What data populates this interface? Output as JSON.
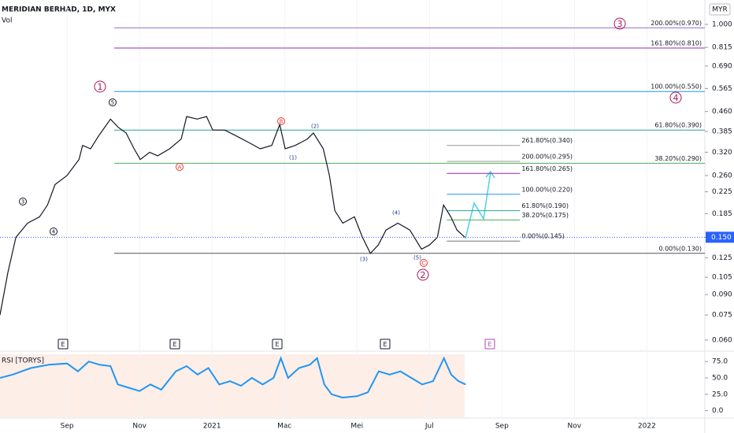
{
  "chart_data": {
    "type": "line",
    "title": "MERIDIAN BERHAD, 1D, MYX",
    "volume_label": "Vol",
    "rsi_label": "RSI [TORYS]",
    "xlim": [
      7.15,
      26.6
    ],
    "xticks": [
      {
        "value": 9,
        "label": "Sep"
      },
      {
        "value": 11,
        "label": "Nov"
      },
      {
        "value": 13,
        "label": "2021"
      },
      {
        "value": 15,
        "label": "Mac"
      },
      {
        "value": 17,
        "label": "Mei"
      },
      {
        "value": 19,
        "label": "Jul"
      },
      {
        "value": 21,
        "label": "Sep"
      },
      {
        "value": 23,
        "label": "Nov"
      },
      {
        "value": 25,
        "label": "2022"
      }
    ],
    "log_scale": true,
    "ylim": [
      0.0567,
      1.243
    ],
    "yticks": [
      {
        "value": 1,
        "label": "1.000"
      },
      0.815,
      {
        "value": 0.69,
        "label": "0.690"
      },
      0.565,
      {
        "value": 0.46,
        "label": "0.460"
      },
      0.385,
      {
        "value": 0.32,
        "label": "0.320"
      },
      {
        "value": 0.26,
        "label": "0.260"
      },
      0.225,
      0.185,
      {
        "value": 0.15,
        "label": "0.150"
      },
      0.125,
      0.105,
      {
        "value": 0.09,
        "label": "0.090"
      },
      0.075,
      {
        "value": 0.06,
        "label": "0.060"
      }
    ],
    "currency": "MYR",
    "last_price": {
      "value": 0.15,
      "label": "0.150"
    },
    "series": [
      {
        "name": "Price",
        "color": "#131722",
        "x": [
          7.15,
          7.37,
          7.59,
          7.91,
          8.24,
          8.46,
          8.67,
          9,
          9.33,
          9.43,
          9.65,
          9.87,
          10.2,
          10.41,
          10.63,
          10.85,
          11.02,
          11.28,
          11.5,
          11.83,
          12.15,
          12.3,
          12.59,
          12.85,
          13.02,
          13.35,
          13.67,
          14,
          14.33,
          14.65,
          14.87,
          15.02,
          15.3,
          15.63,
          15.8,
          16.07,
          16.24,
          16.39,
          16.61,
          16.93,
          17.15,
          17.37,
          17.59,
          17.8,
          18.13,
          18.46,
          18.78,
          19,
          19.22,
          19.39,
          19.59,
          19.76,
          19.98
        ],
        "values": [
          0.075,
          0.11,
          0.15,
          0.17,
          0.18,
          0.2,
          0.24,
          0.26,
          0.3,
          0.34,
          0.33,
          0.37,
          0.43,
          0.4,
          0.38,
          0.33,
          0.3,
          0.32,
          0.31,
          0.33,
          0.36,
          0.44,
          0.43,
          0.44,
          0.39,
          0.39,
          0.37,
          0.35,
          0.33,
          0.34,
          0.41,
          0.33,
          0.34,
          0.36,
          0.38,
          0.33,
          0.26,
          0.19,
          0.17,
          0.18,
          0.15,
          0.13,
          0.14,
          0.16,
          0.17,
          0.16,
          0.135,
          0.14,
          0.15,
          0.2,
          0.18,
          0.16,
          0.15
        ]
      }
    ],
    "fib_levels": [
      {
        "label": "200.00%(0.970)",
        "value": 0.97,
        "color": "#9c6bd1",
        "from": 10.3,
        "to": 26.6
      },
      {
        "label": "161.80%(0.810)",
        "value": 0.81,
        "color": "#9c27b0",
        "from": 10.3,
        "to": 26.6
      },
      {
        "label": "100.00%(0.550)",
        "value": 0.55,
        "color": "#2196f3",
        "from": 10.3,
        "to": 26.6
      },
      {
        "label": "61.80%(0.390)",
        "value": 0.39,
        "color": "#26a69a",
        "from": 10.3,
        "to": 26.6
      },
      {
        "label": "38.20%(0.290)",
        "value": 0.29,
        "color": "#4caf50",
        "from": 10.3,
        "to": 26.6
      },
      {
        "label": "0.00%(0.130)",
        "value": 0.13,
        "color": "#555",
        "from": 10.3,
        "to": 26.6
      },
      {
        "label": "261.80%(0.340)",
        "value": 0.34,
        "color": "#999",
        "from": 19.48,
        "to": 21.5
      },
      {
        "label": "200.00%(0.295)",
        "value": 0.295,
        "color": "#999",
        "from": 19.48,
        "to": 21.5
      },
      {
        "label": "161.80%(0.265)",
        "value": 0.265,
        "color": "#9c27b0",
        "from": 19.48,
        "to": 21.5
      },
      {
        "label": "100.00%(0.220)",
        "value": 0.22,
        "color": "#2196f3",
        "from": 19.48,
        "to": 21.5
      },
      {
        "label": "61.80%(0.190)",
        "value": 0.19,
        "color": "#26a69a",
        "from": 19.48,
        "to": 21.5
      },
      {
        "label": "38.20%(0.175)",
        "value": 0.175,
        "color": "#4caf50",
        "from": 19.48,
        "to": 21.5
      },
      {
        "label": "0.00%(0.145)",
        "value": 0.145,
        "color": "#777",
        "from": 19.48,
        "to": 21.5
      }
    ],
    "wave_labels_major": [
      "1",
      "3",
      "2",
      "4"
    ],
    "wave_labels_minor": [
      "5",
      "3",
      "4",
      "A",
      "B",
      "(2)",
      "(1)",
      "(3)",
      "(4)",
      "(5)",
      "C"
    ],
    "earnings_markers": [
      "E",
      "E",
      "E",
      "E",
      "E"
    ],
    "rsi": {
      "color": "#2196f3",
      "ylim": [
        -10,
        86
      ],
      "yticks": [
        {
          "value": 75,
          "label": "75.0"
        },
        {
          "value": 50,
          "label": "50.0"
        },
        {
          "value": 25,
          "label": "25.0"
        },
        {
          "value": 0,
          "label": "0.0"
        }
      ],
      "x": [
        7.15,
        7.5,
        8,
        8.5,
        9,
        9.3,
        9.6,
        9.9,
        10.2,
        10.4,
        10.7,
        11,
        11.3,
        11.6,
        12,
        12.3,
        12.6,
        12.9,
        13.2,
        13.5,
        13.8,
        14.1,
        14.4,
        14.7,
        14.9,
        15.1,
        15.4,
        15.7,
        15.9,
        16.1,
        16.3,
        16.6,
        17,
        17.3,
        17.6,
        17.9,
        18.2,
        18.5,
        18.8,
        19.1,
        19.4,
        19.6,
        19.8,
        20
      ],
      "values": [
        50,
        55,
        65,
        70,
        72,
        60,
        75,
        70,
        68,
        40,
        35,
        30,
        40,
        32,
        60,
        68,
        55,
        65,
        40,
        45,
        38,
        50,
        40,
        50,
        80,
        50,
        65,
        70,
        80,
        40,
        25,
        20,
        22,
        28,
        60,
        55,
        60,
        50,
        40,
        45,
        80,
        55,
        45,
        40
      ]
    }
  }
}
